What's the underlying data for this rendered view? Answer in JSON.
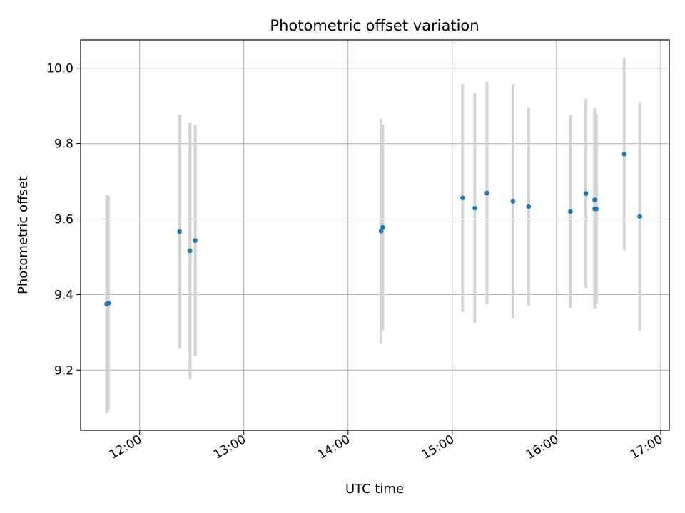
{
  "chart_data": {
    "type": "scatter",
    "title": "Photometric offset variation",
    "xlabel": "UTC time",
    "ylabel": "Photometric offset",
    "x_tick_labels": [
      "12:00",
      "13:00",
      "14:00",
      "15:00",
      "16:00",
      "17:00"
    ],
    "y_tick_labels": [
      "9.2",
      "9.4",
      "9.6",
      "9.8",
      "10.0"
    ],
    "xlim": [
      "11:26",
      "17:05"
    ],
    "ylim": [
      9.04,
      10.075
    ],
    "grid": true,
    "points": [
      {
        "x": "11:41",
        "y": 9.375,
        "err": 0.29
      },
      {
        "x": "11:42",
        "y": 9.377,
        "err": 0.285
      },
      {
        "x": "12:23",
        "y": 9.567,
        "err": 0.31
      },
      {
        "x": "12:29",
        "y": 9.516,
        "err": 0.34
      },
      {
        "x": "12:32",
        "y": 9.543,
        "err": 0.305
      },
      {
        "x": "14:19",
        "y": 9.568,
        "err": 0.298
      },
      {
        "x": "14:20",
        "y": 9.578,
        "err": 0.272
      },
      {
        "x": "15:06",
        "y": 9.656,
        "err": 0.302
      },
      {
        "x": "15:13",
        "y": 9.629,
        "err": 0.305
      },
      {
        "x": "15:20",
        "y": 9.669,
        "err": 0.295
      },
      {
        "x": "15:35",
        "y": 9.647,
        "err": 0.31
      },
      {
        "x": "15:44",
        "y": 9.633,
        "err": 0.263
      },
      {
        "x": "16:08",
        "y": 9.62,
        "err": 0.255
      },
      {
        "x": "16:17",
        "y": 9.668,
        "err": 0.25
      },
      {
        "x": "16:22",
        "y": 9.627,
        "err": 0.265
      },
      {
        "x": "16:22",
        "y": 9.651,
        "err": 0.242
      },
      {
        "x": "16:23",
        "y": 9.627,
        "err": 0.25
      },
      {
        "x": "16:39",
        "y": 9.772,
        "err": 0.255
      },
      {
        "x": "16:48",
        "y": 9.607,
        "err": 0.303
      }
    ],
    "colors": {
      "marker": "#1f77b4",
      "errorbar": "#d3d3d3",
      "grid": "#b0b0b0",
      "axes": "#000000"
    }
  }
}
